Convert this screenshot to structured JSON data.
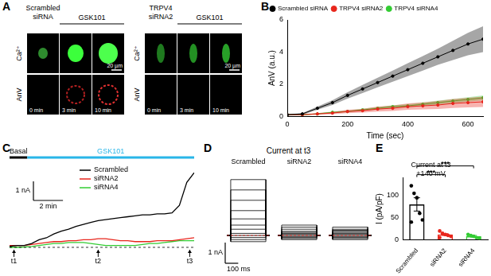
{
  "figure": {
    "A": {
      "panel": "A",
      "groups": [
        {
          "header": "Scrambled siRNA",
          "treatment": "GSK101"
        },
        {
          "header": "TRPV4 siRNA2",
          "treatment": "GSK101"
        }
      ],
      "rows": [
        "Ca²⁺",
        "AnV"
      ],
      "times": [
        "0 min",
        "3 min",
        "10 min"
      ],
      "scale_bar": "20 µm"
    }
  },
  "chart_data": [
    {
      "panel": "B",
      "type": "line",
      "x_label": "Time (sec)",
      "y_label": "AnV (a.u.)",
      "x": [
        0,
        50,
        100,
        150,
        200,
        250,
        300,
        350,
        400,
        450,
        500,
        550,
        600,
        650
      ],
      "xlim": [
        0,
        650
      ],
      "xticks": [
        0,
        200,
        400,
        600
      ],
      "ylim": [
        0,
        6
      ],
      "yticks": [
        0,
        2,
        4,
        6
      ],
      "grid": false,
      "legend": "top-left",
      "marker": "circle",
      "series": [
        {
          "name": "Scrambled siRNA",
          "color": "#000000",
          "values": [
            0.1,
            0.15,
            0.5,
            0.85,
            1.3,
            1.7,
            2.1,
            2.5,
            2.9,
            3.3,
            3.7,
            4.1,
            4.5,
            4.8
          ],
          "error": [
            0.02,
            0.05,
            0.1,
            0.15,
            0.2,
            0.25,
            0.3,
            0.35,
            0.4,
            0.45,
            0.5,
            0.6,
            0.7,
            0.8
          ]
        },
        {
          "name": "TRPV4 siRNA2",
          "color": "#e8261c",
          "values": [
            0.1,
            0.1,
            0.15,
            0.2,
            0.3,
            0.35,
            0.45,
            0.5,
            0.6,
            0.65,
            0.7,
            0.8,
            0.85,
            0.9
          ],
          "error": [
            0.02,
            0.03,
            0.05,
            0.07,
            0.1,
            0.12,
            0.15,
            0.17,
            0.2,
            0.22,
            0.25,
            0.28,
            0.3,
            0.32
          ]
        },
        {
          "name": "TRPV4 siRNA4",
          "color": "#33cc33",
          "values": [
            0.1,
            0.1,
            0.15,
            0.25,
            0.3,
            0.4,
            0.5,
            0.6,
            0.65,
            0.75,
            0.85,
            0.95,
            1.05,
            1.15
          ],
          "error": [
            0.02,
            0.03,
            0.04,
            0.05,
            0.06,
            0.07,
            0.08,
            0.09,
            0.1,
            0.11,
            0.12,
            0.13,
            0.14,
            0.15
          ]
        }
      ]
    },
    {
      "panel": "C",
      "type": "line",
      "x": [
        0,
        0.5,
        1,
        1.5,
        2,
        2.5,
        3,
        3.5,
        4,
        4.5,
        5,
        5.5,
        6,
        6.5,
        7,
        7.5,
        8,
        8.5,
        9,
        9.5,
        10,
        10.5,
        11,
        11.5,
        12,
        12.5
      ],
      "xlim": [
        0,
        12.5
      ],
      "ylim": [
        -0.5,
        4.2
      ],
      "tick_labels": false,
      "legend": "top",
      "baseline": 0,
      "periods": [
        {
          "label": "Basal",
          "start": 0,
          "end": 1.2,
          "color": "#000000"
        },
        {
          "label": "GSK101",
          "start": 1.2,
          "end": 12.5,
          "color": "#29b6e8"
        }
      ],
      "markers": [
        {
          "label": "t1",
          "value": 0.3
        },
        {
          "label": "t2",
          "value": 6
        },
        {
          "label": "t3",
          "value": 12.2
        }
      ],
      "scale_bars": [
        {
          "label": "1 nA",
          "value": 1,
          "axis": "y"
        },
        {
          "label": "2 min",
          "value": 2,
          "axis": "x"
        }
      ],
      "series": [
        {
          "name": "Scrambled",
          "color": "#000000",
          "values": [
            0.05,
            0.1,
            0.1,
            0.2,
            0.4,
            0.5,
            0.7,
            0.85,
            0.95,
            1.1,
            1.2,
            1.3,
            1.4,
            1.45,
            1.5,
            1.55,
            1.6,
            1.65,
            1.7,
            1.7,
            1.75,
            1.75,
            1.8,
            2.2,
            3.4,
            3.9
          ]
        },
        {
          "name": "siRNA2",
          "color": "#e8261c",
          "values": [
            0.1,
            0.1,
            0.1,
            0.15,
            0.2,
            0.25,
            0.3,
            0.3,
            0.35,
            0.35,
            0.4,
            0.4,
            0.45,
            0.45,
            0.4,
            0.35,
            0.35,
            0.3,
            0.3,
            0.3,
            0.35,
            0.35,
            0.35,
            0.4,
            0.45,
            0.5
          ]
        },
        {
          "name": "siRNA4",
          "color": "#33cc33",
          "values": [
            0,
            0,
            0.02,
            0.05,
            0.1,
            0.15,
            0.2,
            0.2,
            0.25,
            0.25,
            0.25,
            0.2,
            0.15,
            0.1,
            0.1,
            0.1,
            0.1,
            0.1,
            0.15,
            0.2,
            0.2,
            0.25,
            0.3,
            0.35,
            0.35,
            0.35
          ]
        }
      ]
    },
    {
      "panel": "D",
      "type": "line",
      "title": "Current at t3",
      "subtitle": "Scrambled",
      "xlim": [
        0,
        330
      ],
      "ylim": [
        -0.5,
        3.2
      ],
      "tick_labels": false,
      "baseline": 0,
      "pulse": [
        30,
        300
      ],
      "color": "#000000",
      "levels": [
        -0.3,
        -0.2,
        -0.1,
        0,
        0.1,
        0.3,
        0.5,
        0.8,
        1.2,
        1.7,
        2.2,
        2.7
      ],
      "scale_bars": [
        {
          "label": "1 nA",
          "value": 1,
          "axis": "y"
        },
        {
          "label": "100 ms",
          "value": 100,
          "axis": "x"
        }
      ]
    },
    {
      "panel": "D",
      "type": "line",
      "subtitle": "siRNA2",
      "xlim": [
        0,
        330
      ],
      "ylim": [
        -0.5,
        3.2
      ],
      "tick_labels": false,
      "baseline": 0,
      "pulse": [
        30,
        300
      ],
      "color": "#000000",
      "levels": [
        -0.2,
        -0.15,
        -0.1,
        -0.05,
        0,
        0.05,
        0.1,
        0.15,
        0.2,
        0.3,
        0.4,
        0.5
      ]
    },
    {
      "panel": "D",
      "type": "line",
      "subtitle": "siRNA4",
      "xlim": [
        0,
        330
      ],
      "ylim": [
        -0.5,
        3.2
      ],
      "tick_labels": false,
      "baseline": 0,
      "pulse": [
        30,
        300
      ],
      "color": "#000000",
      "levels": [
        -0.2,
        -0.15,
        -0.1,
        -0.05,
        0,
        0.05,
        0.1,
        0.15,
        0.2,
        0.25,
        0.3,
        0.4
      ]
    },
    {
      "panel": "E",
      "type": "bar",
      "title": "Current at t3",
      "subtitle": "+140 mV",
      "y_label": "I (pA/pF)",
      "categories": [
        "Scrambled",
        "siRNA2",
        "siRNA4"
      ],
      "values": [
        80,
        12,
        8
      ],
      "error": [
        15,
        2,
        2
      ],
      "points": [
        [
          122,
          105,
          95,
          60,
          45,
          40
        ],
        [
          20,
          15,
          12,
          10,
          8,
          5
        ],
        [
          12,
          10,
          8,
          5,
          4
        ]
      ],
      "colors": [
        "#000000",
        "#e8261c",
        "#33cc33"
      ],
      "ylim": [
        0,
        140
      ],
      "yticks": [
        0,
        50,
        100
      ],
      "grid": false,
      "significance": [
        {
          "from": 0,
          "to": 1,
          "label": "***"
        },
        {
          "from": 0,
          "to": 2,
          "label": "***"
        }
      ]
    }
  ]
}
